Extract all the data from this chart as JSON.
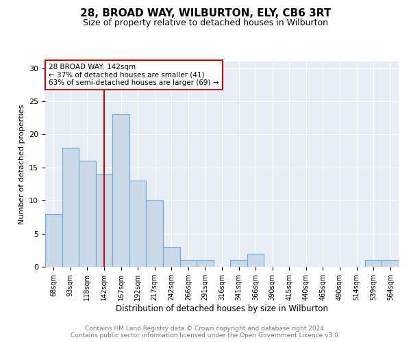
{
  "title1": "28, BROAD WAY, WILBURTON, ELY, CB6 3RT",
  "title2": "Size of property relative to detached houses in Wilburton",
  "xlabel": "Distribution of detached houses by size in Wilburton",
  "ylabel": "Number of detached properties",
  "footnote": "Contains HM Land Registry data © Crown copyright and database right 2024.\nContains public sector information licensed under the Open Government Licence v3.0.",
  "bin_labels": [
    "68sqm",
    "93sqm",
    "118sqm",
    "142sqm",
    "167sqm",
    "192sqm",
    "217sqm",
    "242sqm",
    "266sqm",
    "291sqm",
    "316sqm",
    "341sqm",
    "366sqm",
    "390sqm",
    "415sqm",
    "440sqm",
    "465sqm",
    "490sqm",
    "514sqm",
    "539sqm",
    "564sqm"
  ],
  "bar_heights": [
    8,
    18,
    16,
    14,
    23,
    13,
    10,
    3,
    1,
    1,
    0,
    1,
    2,
    0,
    0,
    0,
    0,
    0,
    0,
    1,
    1
  ],
  "bar_color": "#c9d9e8",
  "bar_edgecolor": "#6fa8d0",
  "vline_x": 3,
  "vline_color": "#cc0000",
  "ann_text": "28 BROAD WAY: 142sqm\n← 37% of detached houses are smaller (41)\n63% of semi-detached houses are larger (69) →",
  "ann_box_color": "#ffffff",
  "ann_edgecolor": "#cc0000",
  "ylim": [
    0,
    31
  ],
  "yticks": [
    0,
    5,
    10,
    15,
    20,
    25,
    30
  ],
  "plot_bg_color": "#e8eef5",
  "grid_color": "#ffffff",
  "title1_fontsize": 11,
  "title2_fontsize": 9,
  "footnote_fontsize": 6.5,
  "footnote_color": "#777777"
}
